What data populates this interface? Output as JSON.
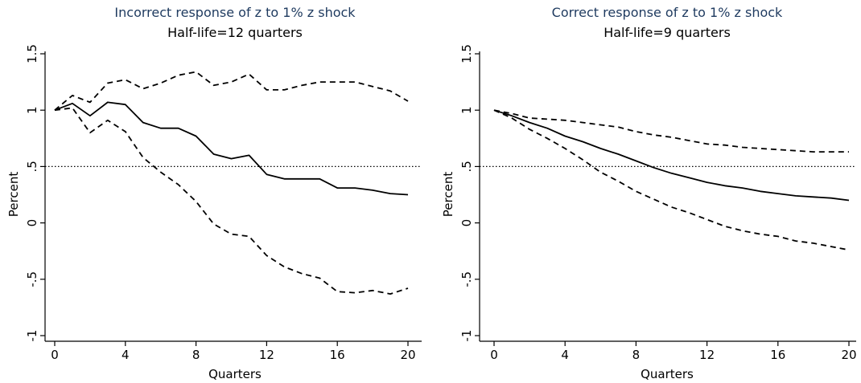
{
  "chart_data": [
    {
      "type": "line",
      "title": "Incorrect response of z to 1% z shock",
      "subtitle": "Half-life=12 quarters",
      "xlabel": "Quarters",
      "ylabel": "Percent",
      "xlim": [
        0,
        20
      ],
      "ylim": [
        -1,
        1.5
      ],
      "xticks": [
        0,
        4,
        8,
        12,
        16,
        20
      ],
      "xtick_labels": [
        "0",
        "4",
        "8",
        "12",
        "16",
        "20"
      ],
      "yticks": [
        -1,
        -0.5,
        0,
        0.5,
        1,
        1.5
      ],
      "ytick_labels": [
        "-1",
        "-.5",
        "0",
        ".5",
        "1",
        "1.5"
      ],
      "reference_line": 0.5,
      "grid": false,
      "x": [
        0,
        1,
        2,
        3,
        4,
        5,
        6,
        7,
        8,
        9,
        10,
        11,
        12,
        13,
        14,
        15,
        16,
        17,
        18,
        19,
        20
      ],
      "series": [
        {
          "style": "solid",
          "values": [
            1.0,
            1.06,
            0.95,
            1.07,
            1.05,
            0.89,
            0.84,
            0.84,
            0.77,
            0.61,
            0.57,
            0.6,
            0.43,
            0.39,
            0.39,
            0.39,
            0.31,
            0.31,
            0.29,
            0.26,
            0.25
          ]
        },
        {
          "style": "dashed",
          "values": [
            1.0,
            1.13,
            1.07,
            1.24,
            1.27,
            1.19,
            1.24,
            1.31,
            1.34,
            1.22,
            1.25,
            1.32,
            1.18,
            1.18,
            1.22,
            1.25,
            1.25,
            1.25,
            1.21,
            1.17,
            1.08
          ]
        },
        {
          "style": "dashed",
          "values": [
            1.0,
            1.02,
            0.8,
            0.91,
            0.81,
            0.58,
            0.45,
            0.34,
            0.19,
            -0.01,
            -0.1,
            -0.12,
            -0.29,
            -0.39,
            -0.45,
            -0.49,
            -0.61,
            -0.62,
            -0.6,
            -0.63,
            -0.58
          ]
        }
      ]
    },
    {
      "type": "line",
      "title": "Correct response of z to 1% z shock",
      "subtitle": "Half-life=9 quarters",
      "xlabel": "Quarters",
      "ylabel": "Percent",
      "xlim": [
        0,
        20
      ],
      "ylim": [
        -1,
        1.5
      ],
      "xticks": [
        0,
        4,
        8,
        12,
        16,
        20
      ],
      "xtick_labels": [
        "0",
        "4",
        "8",
        "12",
        "16",
        "20"
      ],
      "yticks": [
        -1,
        -0.5,
        0,
        0.5,
        1,
        1.5
      ],
      "ytick_labels": [
        "-1",
        "-.5",
        "0",
        ".5",
        "1",
        "1.5"
      ],
      "reference_line": 0.5,
      "grid": false,
      "x": [
        0,
        1,
        2,
        3,
        4,
        5,
        6,
        7,
        8,
        9,
        10,
        11,
        12,
        13,
        14,
        15,
        16,
        17,
        18,
        19,
        20
      ],
      "series": [
        {
          "style": "solid",
          "values": [
            1.0,
            0.95,
            0.89,
            0.84,
            0.77,
            0.72,
            0.66,
            0.61,
            0.55,
            0.49,
            0.44,
            0.4,
            0.36,
            0.33,
            0.31,
            0.28,
            0.26,
            0.24,
            0.23,
            0.22,
            0.2
          ]
        },
        {
          "style": "dashed",
          "values": [
            1.0,
            0.97,
            0.93,
            0.92,
            0.91,
            0.89,
            0.87,
            0.85,
            0.81,
            0.78,
            0.76,
            0.73,
            0.7,
            0.69,
            0.67,
            0.66,
            0.65,
            0.64,
            0.63,
            0.63,
            0.63
          ]
        },
        {
          "style": "dashed",
          "values": [
            1.0,
            0.93,
            0.83,
            0.75,
            0.66,
            0.56,
            0.45,
            0.37,
            0.28,
            0.21,
            0.14,
            0.09,
            0.03,
            -0.03,
            -0.07,
            -0.1,
            -0.12,
            -0.16,
            -0.18,
            -0.21,
            -0.24
          ]
        }
      ]
    }
  ]
}
